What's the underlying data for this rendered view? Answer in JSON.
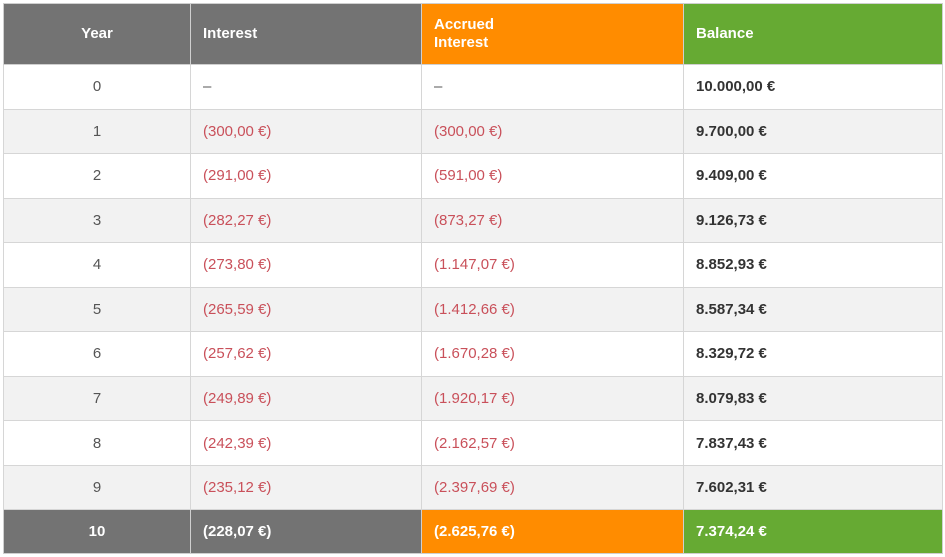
{
  "headers": {
    "year": "Year",
    "interest": "Interest",
    "accrued_line1": "Accrued",
    "accrued_line2": "Interest",
    "balance": "Balance"
  },
  "rows": [
    {
      "year": "0",
      "interest": "–",
      "accrued": "–",
      "balance": "10.000,00 €"
    },
    {
      "year": "1",
      "interest": "(300,00 €)",
      "accrued": "(300,00 €)",
      "balance": "9.700,00 €"
    },
    {
      "year": "2",
      "interest": "(291,00 €)",
      "accrued": "(591,00 €)",
      "balance": "9.409,00 €"
    },
    {
      "year": "3",
      "interest": "(282,27 €)",
      "accrued": "(873,27 €)",
      "balance": "9.126,73 €"
    },
    {
      "year": "4",
      "interest": "(273,80 €)",
      "accrued": "(1.147,07 €)",
      "balance": "8.852,93 €"
    },
    {
      "year": "5",
      "interest": "(265,59 €)",
      "accrued": "(1.412,66 €)",
      "balance": "8.587,34 €"
    },
    {
      "year": "6",
      "interest": "(257,62 €)",
      "accrued": "(1.670,28 €)",
      "balance": "8.329,72 €"
    },
    {
      "year": "7",
      "interest": "(249,89 €)",
      "accrued": "(1.920,17 €)",
      "balance": "8.079,83 €"
    },
    {
      "year": "8",
      "interest": "(242,39 €)",
      "accrued": "(2.162,57 €)",
      "balance": "7.837,43 €"
    },
    {
      "year": "9",
      "interest": "(235,12 €)",
      "accrued": "(2.397,69 €)",
      "balance": "7.602,31 €"
    }
  ],
  "total": {
    "year": "10",
    "interest": "(228,07 €)",
    "accrued": "(2.625,76 €)",
    "balance": "7.374,24 €"
  },
  "colors": {
    "header_gray": "#737373",
    "accrued_orange": "#ff8c00",
    "balance_green": "#66aa33",
    "negative_red": "#c9505a"
  }
}
